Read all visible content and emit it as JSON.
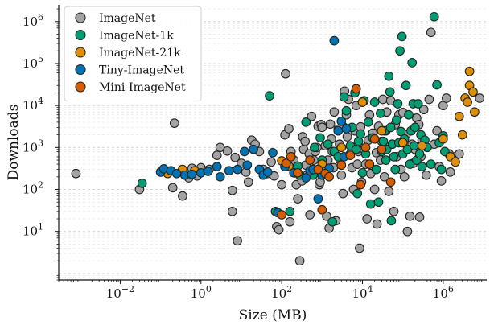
{
  "chart_data": {
    "type": "scatter",
    "title": "",
    "xlabel": "Size (MB)",
    "ylabel": "Downloads",
    "xscale": "log",
    "yscale": "log",
    "xlim": [
      0.0003,
      12000000
    ],
    "ylim": [
      0.7,
      2500000
    ],
    "x_ticks": [
      {
        "value": 0.01,
        "base": "10",
        "exp": "−2"
      },
      {
        "value": 1,
        "base": "10",
        "exp": "0"
      },
      {
        "value": 100,
        "base": "10",
        "exp": "2"
      },
      {
        "value": 10000,
        "base": "10",
        "exp": "4"
      },
      {
        "value": 1000000,
        "base": "10",
        "exp": "6"
      }
    ],
    "y_ticks": [
      {
        "value": 10,
        "base": "10",
        "exp": "1"
      },
      {
        "value": 100,
        "base": "10",
        "exp": "2"
      },
      {
        "value": 1000,
        "base": "10",
        "exp": "3"
      },
      {
        "value": 10000,
        "base": "10",
        "exp": "4"
      },
      {
        "value": 100000,
        "base": "10",
        "exp": "5"
      },
      {
        "value": 1000000,
        "base": "10",
        "exp": "6"
      }
    ],
    "grid": "horizontal dashed (major and minor y)",
    "legend_position": "top-left",
    "series": [
      {
        "name": "ImageNet",
        "color": "#a3a3a3",
        "points": [
          [
            0.0008,
            240
          ],
          [
            0.03,
            100
          ],
          [
            0.2,
            110
          ],
          [
            0.22,
            3800
          ],
          [
            0.35,
            70
          ],
          [
            0.5,
            190
          ],
          [
            0.8,
            210
          ],
          [
            1,
            330
          ],
          [
            0.6,
            320
          ],
          [
            1.6,
            300
          ],
          [
            2.5,
            650
          ],
          [
            3,
            1000
          ],
          [
            4.5,
            820
          ],
          [
            6,
            95
          ],
          [
            6,
            30
          ],
          [
            7,
            580
          ],
          [
            8,
            6
          ],
          [
            10,
            420
          ],
          [
            13,
            260
          ],
          [
            15,
            150
          ],
          [
            18,
            1500
          ],
          [
            22,
            1200
          ],
          [
            28,
            800
          ],
          [
            35,
            300
          ],
          [
            45,
            240
          ],
          [
            55,
            450
          ],
          [
            65,
            210
          ],
          [
            75,
            13
          ],
          [
            85,
            11
          ],
          [
            100,
            130
          ],
          [
            120,
            2000
          ],
          [
            125,
            57000
          ],
          [
            150,
            2800
          ],
          [
            160,
            17
          ],
          [
            170,
            800
          ],
          [
            180,
            420
          ],
          [
            200,
            500
          ],
          [
            210,
            250
          ],
          [
            230,
            130
          ],
          [
            250,
            60
          ],
          [
            280,
            2
          ],
          [
            300,
            200
          ],
          [
            320,
            160
          ],
          [
            330,
            1800
          ],
          [
            350,
            900
          ],
          [
            380,
            1400
          ],
          [
            400,
            380
          ],
          [
            420,
            220
          ],
          [
            480,
            700
          ],
          [
            500,
            25
          ],
          [
            550,
            5500
          ],
          [
            620,
            500
          ],
          [
            680,
            800
          ],
          [
            700,
            250
          ],
          [
            750,
            1000
          ],
          [
            800,
            3200
          ],
          [
            850,
            130
          ],
          [
            900,
            150
          ],
          [
            950,
            3500
          ],
          [
            1000,
            3000
          ],
          [
            1100,
            420
          ],
          [
            1200,
            1100
          ],
          [
            1300,
            23
          ],
          [
            1400,
            500
          ],
          [
            1500,
            12
          ],
          [
            1600,
            3600
          ],
          [
            1700,
            1600
          ],
          [
            1800,
            800
          ],
          [
            1900,
            330
          ],
          [
            2000,
            7000
          ],
          [
            2200,
            18
          ],
          [
            2500,
            2700
          ],
          [
            2700,
            1200
          ],
          [
            2800,
            500
          ],
          [
            3000,
            220
          ],
          [
            3300,
            80
          ],
          [
            3500,
            3000
          ],
          [
            3600,
            22000
          ],
          [
            4000,
            6000
          ],
          [
            4200,
            1800
          ],
          [
            4500,
            14000
          ],
          [
            5000,
            700
          ],
          [
            5500,
            330
          ],
          [
            6000,
            100
          ],
          [
            6500,
            2500
          ],
          [
            7000,
            10000
          ],
          [
            7500,
            400
          ],
          [
            8000,
            800
          ],
          [
            8500,
            4
          ],
          [
            9000,
            3100
          ],
          [
            9500,
            150
          ],
          [
            10000,
            12000
          ],
          [
            11000,
            900
          ],
          [
            12000,
            400
          ],
          [
            13000,
            20
          ],
          [
            14000,
            1500
          ],
          [
            15000,
            6000
          ],
          [
            16000,
            240
          ],
          [
            18000,
            2200
          ],
          [
            20000,
            100
          ],
          [
            22000,
            750
          ],
          [
            23000,
            15
          ],
          [
            25000,
            3200
          ],
          [
            28000,
            500
          ],
          [
            30000,
            1400
          ],
          [
            32000,
            14000
          ],
          [
            35000,
            200
          ],
          [
            38000,
            2500
          ],
          [
            40000,
            7000
          ],
          [
            45000,
            90
          ],
          [
            50000,
            13000
          ],
          [
            55000,
            1200
          ],
          [
            60000,
            30
          ],
          [
            65000,
            3500
          ],
          [
            70000,
            600
          ],
          [
            80000,
            6000
          ],
          [
            90000,
            300
          ],
          [
            100000,
            6800
          ],
          [
            110000,
            200
          ],
          [
            120000,
            2000
          ],
          [
            130000,
            10
          ],
          [
            150000,
            23
          ],
          [
            170000,
            1200
          ],
          [
            180000,
            420
          ],
          [
            200000,
            900
          ],
          [
            220000,
            5000
          ],
          [
            250000,
            3500
          ],
          [
            260000,
            22
          ],
          [
            280000,
            600
          ],
          [
            300000,
            1500
          ],
          [
            330000,
            8000
          ],
          [
            380000,
            220
          ],
          [
            400000,
            1000
          ],
          [
            450000,
            14000
          ],
          [
            500000,
            550000
          ],
          [
            600000,
            1200
          ],
          [
            700000,
            2500
          ],
          [
            800000,
            350
          ],
          [
            900000,
            160
          ],
          [
            1000000,
            10000
          ],
          [
            1200000,
            15000
          ],
          [
            1400000,
            700
          ],
          [
            1500000,
            260
          ],
          [
            2000000,
            600
          ],
          [
            2500000,
            700
          ],
          [
            8000000,
            15000
          ]
        ]
      },
      {
        "name": "ImageNet-1k",
        "color": "#029e73",
        "points": [
          [
            0.035,
            140
          ],
          [
            50,
            17000
          ],
          [
            70,
            30
          ],
          [
            160,
            30
          ],
          [
            250,
            360
          ],
          [
            280,
            220
          ],
          [
            400,
            4000
          ],
          [
            600,
            220
          ],
          [
            650,
            1000
          ],
          [
            900,
            1700
          ],
          [
            1000,
            500
          ],
          [
            1400,
            1200
          ],
          [
            1800,
            17
          ],
          [
            2000,
            800
          ],
          [
            2500,
            600
          ],
          [
            3500,
            16000
          ],
          [
            4000,
            7500
          ],
          [
            5000,
            1100
          ],
          [
            5500,
            3000
          ],
          [
            6500,
            20000
          ],
          [
            7000,
            900
          ],
          [
            7500,
            80
          ],
          [
            8000,
            1400
          ],
          [
            9000,
            2100
          ],
          [
            10000,
            250
          ],
          [
            11000,
            13000
          ],
          [
            12000,
            700
          ],
          [
            14000,
            4000
          ],
          [
            16000,
            45
          ],
          [
            18000,
            1700
          ],
          [
            20000,
            12000
          ],
          [
            22000,
            300
          ],
          [
            25000,
            50
          ],
          [
            28000,
            6500
          ],
          [
            30000,
            800
          ],
          [
            33000,
            1400
          ],
          [
            35000,
            2500
          ],
          [
            38000,
            500
          ],
          [
            40000,
            900
          ],
          [
            45000,
            50000
          ],
          [
            48000,
            21000
          ],
          [
            50000,
            3000
          ],
          [
            52000,
            18
          ],
          [
            55000,
            1200
          ],
          [
            60000,
            600
          ],
          [
            65000,
            300
          ],
          [
            70000,
            4500
          ],
          [
            75000,
            11000
          ],
          [
            80000,
            1300
          ],
          [
            85000,
            200000
          ],
          [
            90000,
            2400
          ],
          [
            95000,
            440000
          ],
          [
            100000,
            700
          ],
          [
            110000,
            1600
          ],
          [
            120000,
            30000
          ],
          [
            130000,
            900
          ],
          [
            140000,
            6000
          ],
          [
            150000,
            400
          ],
          [
            160000,
            2500
          ],
          [
            170000,
            105000
          ],
          [
            180000,
            11000
          ],
          [
            190000,
            1100
          ],
          [
            200000,
            3000
          ],
          [
            220000,
            500
          ],
          [
            240000,
            11000
          ],
          [
            260000,
            700
          ],
          [
            280000,
            2000
          ],
          [
            300000,
            350
          ],
          [
            350000,
            1500
          ],
          [
            400000,
            1000
          ],
          [
            500000,
            400
          ],
          [
            600000,
            1300000
          ],
          [
            700000,
            31000
          ],
          [
            800000,
            1300
          ],
          [
            900000,
            300
          ],
          [
            1000000,
            1900
          ],
          [
            1100000,
            800
          ]
        ]
      },
      {
        "name": "ImageNet-21k",
        "color": "#de8f05",
        "points": [
          [
            0.15,
            240
          ],
          [
            0.35,
            300
          ],
          [
            0.7,
            280
          ],
          [
            100,
            480
          ],
          [
            150,
            360
          ],
          [
            1000,
            400
          ],
          [
            3000,
            1000
          ],
          [
            10000,
            12000
          ],
          [
            30000,
            2500
          ],
          [
            100000,
            1300
          ],
          [
            300000,
            1100
          ],
          [
            1000000,
            1600
          ],
          [
            1500000,
            600
          ],
          [
            2000000,
            450
          ],
          [
            2500000,
            5500
          ],
          [
            3000000,
            2000
          ],
          [
            3500000,
            15000
          ],
          [
            4000000,
            12000
          ],
          [
            4500000,
            30000
          ],
          [
            4500000,
            65000
          ],
          [
            5500000,
            21000
          ],
          [
            6000000,
            7000
          ]
        ]
      },
      {
        "name": "Tiny-ImageNet",
        "color": "#0173b2",
        "points": [
          [
            0.1,
            260
          ],
          [
            0.12,
            310
          ],
          [
            0.18,
            280
          ],
          [
            0.25,
            240
          ],
          [
            0.4,
            220
          ],
          [
            0.6,
            230
          ],
          [
            1,
            250
          ],
          [
            1.5,
            270
          ],
          [
            2.5,
            350
          ],
          [
            3,
            200
          ],
          [
            5,
            280
          ],
          [
            8,
            300
          ],
          [
            12,
            800
          ],
          [
            14,
            380
          ],
          [
            20,
            900
          ],
          [
            28,
            300
          ],
          [
            35,
            220
          ],
          [
            45,
            260
          ],
          [
            60,
            750
          ],
          [
            80,
            28
          ],
          [
            120,
            350
          ],
          [
            200,
            250
          ],
          [
            400,
            190
          ],
          [
            500,
            280
          ],
          [
            600,
            300
          ],
          [
            800,
            60
          ],
          [
            1000,
            220
          ],
          [
            1500,
            320
          ],
          [
            2000,
            350000
          ],
          [
            2500,
            2500
          ],
          [
            3000,
            4200
          ],
          [
            3500,
            600
          ],
          [
            4000,
            2800
          ]
        ]
      },
      {
        "name": "Mini-ImageNet",
        "color": "#d55e00",
        "points": [
          [
            100,
            25
          ],
          [
            130,
            420
          ],
          [
            170,
            600
          ],
          [
            250,
            250
          ],
          [
            500,
            500
          ],
          [
            800,
            300
          ],
          [
            1000,
            33
          ],
          [
            1200,
            240
          ],
          [
            1500,
            200
          ],
          [
            3000,
            380
          ],
          [
            5000,
            650
          ],
          [
            7000,
            25000
          ],
          [
            9000,
            130
          ],
          [
            12000,
            1000
          ],
          [
            15000,
            400
          ],
          [
            20000,
            1600
          ],
          [
            30000,
            900
          ],
          [
            50000,
            150
          ]
        ]
      }
    ]
  }
}
